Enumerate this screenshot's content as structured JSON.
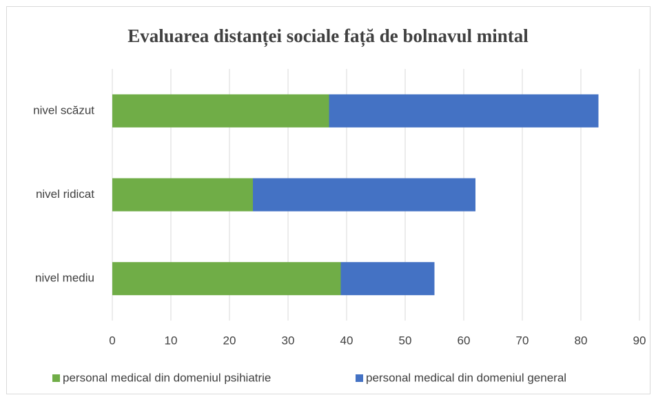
{
  "chart_data": {
    "type": "stacked_hbar",
    "title": "Evaluarea distanței sociale față de bolnavul mintal",
    "categories": [
      "nivel scăzut",
      "nivel ridicat",
      "nivel mediu"
    ],
    "series": [
      {
        "name": "personal medical din domeniul psihiatrie",
        "color": "#70ad47",
        "values": [
          37,
          24,
          39
        ]
      },
      {
        "name": "personal medical din domeniul general",
        "color": "#4472c4",
        "values": [
          46,
          38,
          16
        ]
      }
    ],
    "xlim": [
      0,
      90
    ],
    "xticks": [
      0,
      10,
      20,
      30,
      40,
      50,
      60,
      70,
      80,
      90
    ],
    "grid": true,
    "legend": "bottom"
  }
}
